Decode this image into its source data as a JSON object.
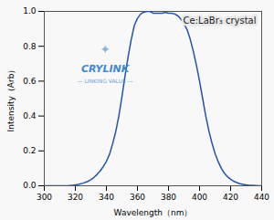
{
  "chart_data": {
    "type": "line",
    "title": "Ce:LaBr₃ crystal",
    "xlabel": "Wavelength（nm）",
    "ylabel": "Intensity（Arb）",
    "x": [
      300,
      305,
      310,
      315,
      318,
      320,
      322,
      325,
      328,
      330,
      332,
      334,
      336,
      338,
      340,
      342,
      344,
      346,
      348,
      350,
      352,
      354,
      356,
      358,
      360,
      362,
      364,
      366,
      368,
      370,
      372,
      374,
      376,
      378,
      380,
      382,
      384,
      386,
      388,
      390,
      392,
      394,
      396,
      398,
      400,
      402,
      404,
      406,
      408,
      410,
      412,
      414,
      416,
      418,
      420,
      422,
      424,
      426,
      428,
      430,
      432,
      434,
      436,
      438,
      440
    ],
    "values": [
      0.0,
      0.0,
      0.0,
      0.0,
      0.002,
      0.005,
      0.008,
      0.015,
      0.025,
      0.035,
      0.048,
      0.065,
      0.085,
      0.11,
      0.14,
      0.18,
      0.24,
      0.31,
      0.4,
      0.51,
      0.63,
      0.74,
      0.84,
      0.92,
      0.96,
      0.985,
      0.995,
      1.0,
      1.0,
      0.99,
      0.99,
      0.99,
      0.99,
      0.995,
      0.99,
      0.99,
      0.985,
      0.975,
      0.955,
      0.93,
      0.895,
      0.84,
      0.77,
      0.69,
      0.6,
      0.5,
      0.4,
      0.315,
      0.245,
      0.185,
      0.138,
      0.1,
      0.072,
      0.052,
      0.037,
      0.026,
      0.018,
      0.012,
      0.008,
      0.005,
      0.003,
      0.002,
      0.001,
      0.0,
      0.0
    ],
    "color": "#2255aa",
    "xlim": [
      300,
      440
    ],
    "ylim": [
      0.0,
      1.0
    ],
    "xticks": [
      300,
      320,
      340,
      360,
      380,
      400,
      420,
      440
    ],
    "yticks": [
      {
        "value": 0.0,
        "label": "0.0"
      },
      0.2,
      0.4,
      0.6,
      0.8,
      {
        "value": 1.0,
        "label": "1.0"
      }
    ],
    "grid": false,
    "annotations": [
      "✦",
      "CRYLINK",
      "— LINKING VALUE —"
    ]
  }
}
